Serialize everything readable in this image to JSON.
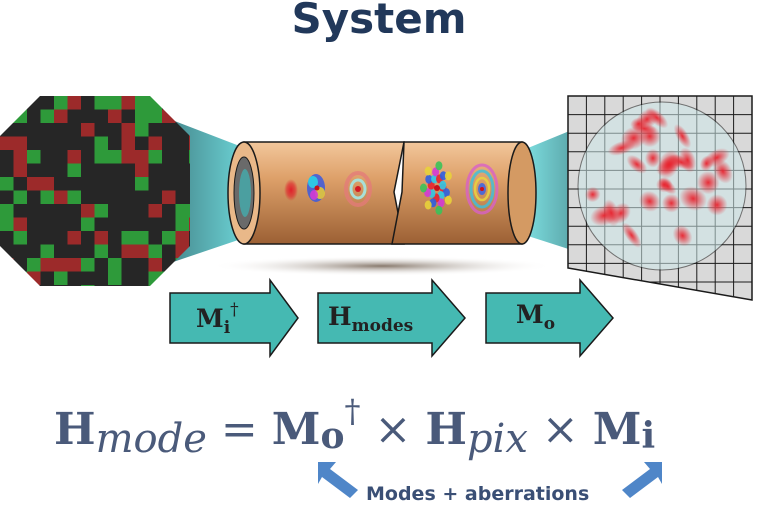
{
  "title": "System",
  "pipeline": {
    "arrows": [
      {
        "main": "M",
        "sub": "i",
        "sup": "†"
      },
      {
        "main": "H",
        "sub": "modes",
        "sup": ""
      },
      {
        "main": "M",
        "sub": "o",
        "sup": ""
      }
    ]
  },
  "equation": {
    "lhs_symbol": "H",
    "lhs_sub": "mode",
    "equals": "=",
    "m_o_symbol": "M",
    "m_o_sub": "o",
    "dagger": "†",
    "times": "×",
    "h_pix_symbol": "H",
    "h_pix_sub": "pix",
    "m_i_symbol": "M",
    "m_i_sub": "i"
  },
  "annotation": "Modes + aberrations",
  "colors": {
    "title": "#21385a",
    "equation": "#4a5a7a",
    "arrow_fill": "#45b9b2",
    "fiber": "#d6975f",
    "pixel_red": "#9c2a2a",
    "pixel_green": "#2e9a3a",
    "pixel_dark": "#262626",
    "callout_arrow": "#4f86c8"
  }
}
